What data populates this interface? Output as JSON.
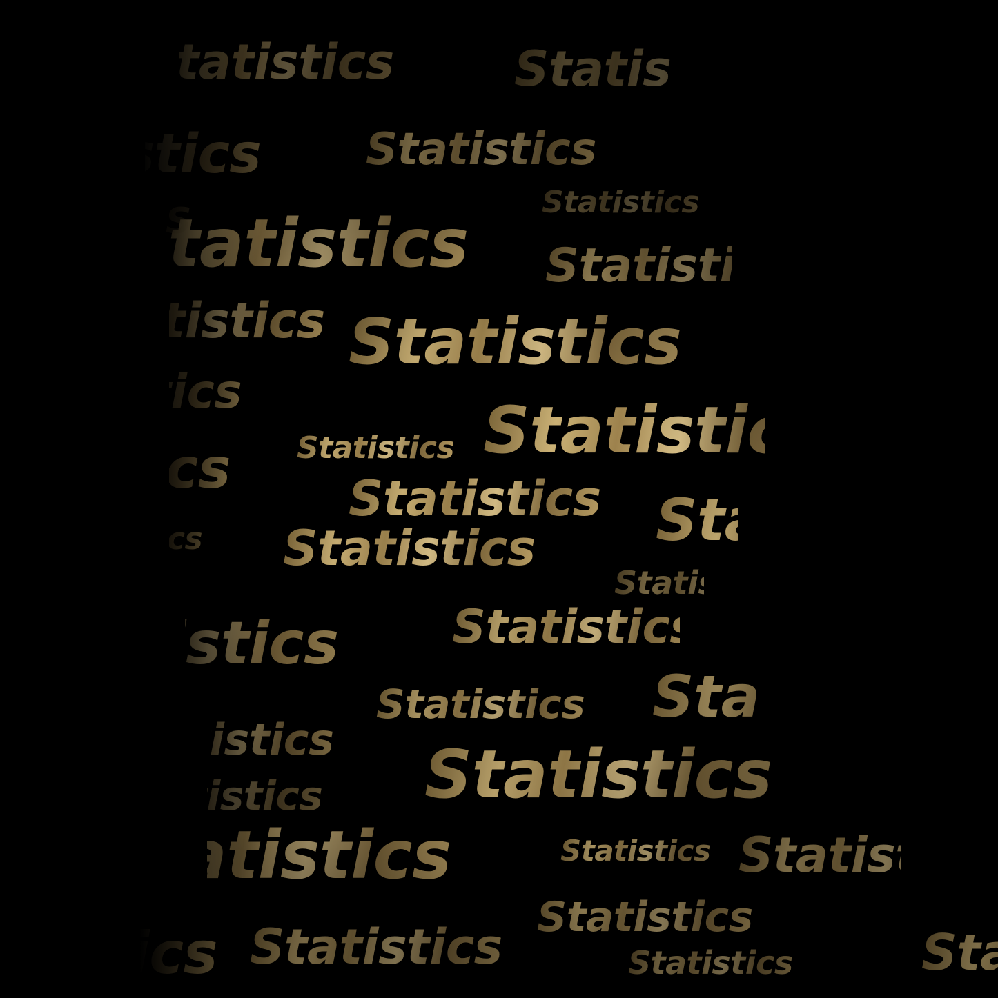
{
  "word": "Statistics",
  "colors": {
    "background": "#000000",
    "gold_light": "#e2c98e",
    "gold_dark": "#7a6336"
  },
  "words": [
    {
      "text": "Statistics"
    },
    {
      "text": "Statistics"
    },
    {
      "text": "Statistics"
    },
    {
      "text": "Statistics"
    },
    {
      "text": "Statistics"
    },
    {
      "text": "Statistics"
    },
    {
      "text": "Statistics"
    },
    {
      "text": "Statistics"
    },
    {
      "text": "Statistics"
    },
    {
      "text": "Statistics"
    },
    {
      "text": "Statistics"
    },
    {
      "text": "Statistics"
    },
    {
      "text": "Statistics"
    },
    {
      "text": "Statistics"
    },
    {
      "text": "Statistics"
    },
    {
      "text": "Statistics"
    },
    {
      "text": "Statistics"
    },
    {
      "text": "Statistics"
    },
    {
      "text": "Statistics"
    },
    {
      "text": "Statistics"
    },
    {
      "text": "Statistics"
    },
    {
      "text": "Statistics"
    },
    {
      "text": "Statistics"
    },
    {
      "text": "Statistics"
    },
    {
      "text": "Statistics"
    },
    {
      "text": "Statistics"
    },
    {
      "text": "Statistics"
    },
    {
      "text": "Statistics"
    },
    {
      "text": "Statistics"
    },
    {
      "text": "Statistics"
    },
    {
      "text": "Statistics"
    },
    {
      "text": "Statistics"
    },
    {
      "text": "Statistics"
    },
    {
      "text": "Statistics"
    },
    {
      "text": "Statistics"
    },
    {
      "text": "Statistics"
    },
    {
      "text": "Statistics"
    }
  ]
}
